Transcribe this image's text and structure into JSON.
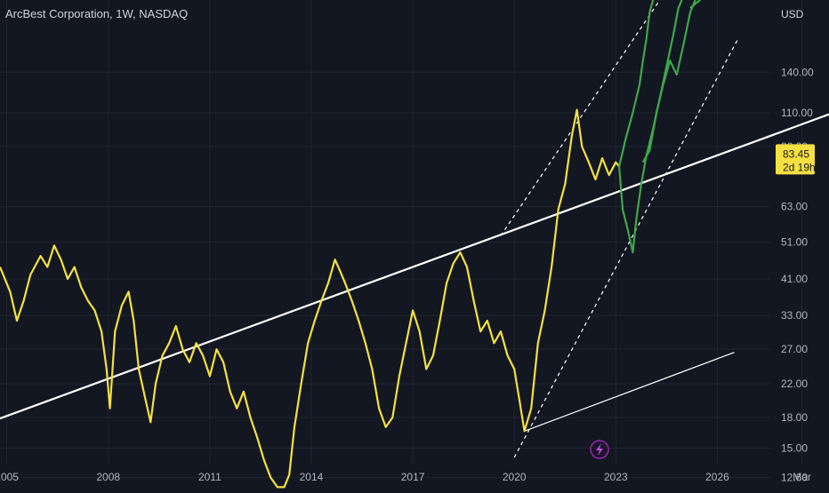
{
  "header": {
    "title": "ArcBest Corporation, 1W, NASDAQ"
  },
  "chart_data": {
    "type": "line",
    "y_scale": "log",
    "y_axis_unit": "USD",
    "y_ticks": [
      12.6,
      15.0,
      18.0,
      22.0,
      27.0,
      33.0,
      41.0,
      51.0,
      63.0,
      90.0,
      110.0,
      140.0
    ],
    "y_tick_labels": [
      "12.60",
      "15.00",
      "18.00",
      "22.00",
      "27.00",
      "33.00",
      "41.00",
      "51.00",
      "63.00",
      "90.00",
      "110.00",
      "140.00"
    ],
    "x_tick_labels": [
      "2005",
      "2008",
      "2011",
      "2014",
      "2017",
      "2020",
      "2023",
      "2026",
      "Mar"
    ],
    "x_tick_values": [
      2005,
      2008,
      2011,
      2014,
      2017,
      2020,
      2023,
      2026,
      2028.5
    ],
    "ylim": [
      11.8,
      215
    ],
    "xlim": [
      2004.8,
      2029.3
    ],
    "last_price": {
      "value": 83.45,
      "label": "83.45",
      "countdown": "2d 19h"
    },
    "series": [
      {
        "color": "#f5e042",
        "points": [
          [
            2004.8,
            44
          ],
          [
            2005.1,
            38
          ],
          [
            2005.3,
            32
          ],
          [
            2005.5,
            36
          ],
          [
            2005.7,
            42
          ],
          [
            2006.0,
            47
          ],
          [
            2006.2,
            44
          ],
          [
            2006.4,
            50
          ],
          [
            2006.6,
            46
          ],
          [
            2006.8,
            41
          ],
          [
            2007.0,
            44
          ],
          [
            2007.2,
            39
          ],
          [
            2007.4,
            36
          ],
          [
            2007.6,
            34
          ],
          [
            2007.8,
            30
          ],
          [
            2007.95,
            24
          ],
          [
            2008.05,
            19
          ],
          [
            2008.2,
            30
          ],
          [
            2008.4,
            35
          ],
          [
            2008.6,
            38
          ],
          [
            2008.75,
            32
          ],
          [
            2008.9,
            24
          ],
          [
            2009.1,
            20
          ],
          [
            2009.25,
            17.5
          ],
          [
            2009.4,
            22
          ],
          [
            2009.6,
            26
          ],
          [
            2009.8,
            28
          ],
          [
            2010.0,
            31
          ],
          [
            2010.2,
            27
          ],
          [
            2010.4,
            25
          ],
          [
            2010.6,
            28
          ],
          [
            2010.8,
            26
          ],
          [
            2011.0,
            23
          ],
          [
            2011.2,
            27
          ],
          [
            2011.4,
            25
          ],
          [
            2011.6,
            21
          ],
          [
            2011.8,
            19
          ],
          [
            2012.0,
            21
          ],
          [
            2012.2,
            18
          ],
          [
            2012.4,
            16
          ],
          [
            2012.6,
            14
          ],
          [
            2012.8,
            12.6
          ],
          [
            2013.0,
            11.9
          ],
          [
            2013.2,
            11.9
          ],
          [
            2013.35,
            12.8
          ],
          [
            2013.5,
            17
          ],
          [
            2013.7,
            22
          ],
          [
            2013.9,
            28
          ],
          [
            2014.1,
            32
          ],
          [
            2014.3,
            36
          ],
          [
            2014.5,
            40
          ],
          [
            2014.7,
            46
          ],
          [
            2014.85,
            43
          ],
          [
            2015.0,
            40
          ],
          [
            2015.2,
            36
          ],
          [
            2015.4,
            32
          ],
          [
            2015.6,
            28
          ],
          [
            2015.8,
            24
          ],
          [
            2016.0,
            19
          ],
          [
            2016.2,
            17
          ],
          [
            2016.4,
            18
          ],
          [
            2016.6,
            23
          ],
          [
            2016.8,
            28
          ],
          [
            2017.0,
            34
          ],
          [
            2017.2,
            30
          ],
          [
            2017.4,
            24
          ],
          [
            2017.6,
            26
          ],
          [
            2017.8,
            32
          ],
          [
            2018.0,
            40
          ],
          [
            2018.2,
            45
          ],
          [
            2018.4,
            48
          ],
          [
            2018.6,
            44
          ],
          [
            2018.8,
            36
          ],
          [
            2019.0,
            30
          ],
          [
            2019.2,
            32
          ],
          [
            2019.4,
            28
          ],
          [
            2019.6,
            30
          ],
          [
            2019.8,
            26
          ],
          [
            2020.0,
            24
          ],
          [
            2020.15,
            20
          ],
          [
            2020.3,
            16.6
          ],
          [
            2020.5,
            19
          ],
          [
            2020.7,
            28
          ],
          [
            2020.9,
            34
          ],
          [
            2021.1,
            44
          ],
          [
            2021.3,
            62
          ],
          [
            2021.5,
            72
          ],
          [
            2021.7,
            96
          ],
          [
            2021.85,
            112
          ],
          [
            2022.0,
            90
          ],
          [
            2022.2,
            82
          ],
          [
            2022.4,
            74
          ],
          [
            2022.6,
            84
          ],
          [
            2022.8,
            76
          ],
          [
            2023.0,
            82
          ],
          [
            2023.1,
            80
          ]
        ]
      },
      {
        "color": "#3ea84a",
        "points": [
          [
            2023.1,
            80
          ],
          [
            2023.3,
            95
          ],
          [
            2023.5,
            110
          ],
          [
            2023.7,
            130
          ],
          [
            2023.8,
            150
          ],
          [
            2023.9,
            170
          ],
          [
            2024.0,
            200
          ],
          [
            2024.1,
            215
          ]
        ]
      },
      {
        "color": "#3ea84a",
        "points": [
          [
            2023.1,
            80
          ],
          [
            2023.2,
            62
          ],
          [
            2023.35,
            55
          ],
          [
            2023.5,
            48
          ],
          [
            2023.6,
            58
          ],
          [
            2023.75,
            72
          ],
          [
            2023.9,
            85
          ],
          [
            2024.1,
            100
          ],
          [
            2024.3,
            120
          ],
          [
            2024.5,
            145
          ],
          [
            2024.7,
            175
          ],
          [
            2024.85,
            205
          ],
          [
            2024.95,
            215
          ]
        ]
      },
      {
        "color": "#3ea84a",
        "points": [
          [
            2023.8,
            82
          ],
          [
            2024.0,
            88
          ],
          [
            2024.2,
            110
          ],
          [
            2024.4,
            130
          ],
          [
            2024.6,
            150
          ],
          [
            2024.8,
            138
          ],
          [
            2025.0,
            165
          ],
          [
            2025.2,
            200
          ],
          [
            2025.35,
            215
          ]
        ]
      },
      {
        "color": "#3ea84a",
        "points": [
          [
            2025.2,
            205
          ],
          [
            2025.4,
            212
          ],
          [
            2025.5,
            215
          ]
        ]
      }
    ],
    "trendlines": [
      {
        "style": "solid",
        "width": 2.2,
        "from": [
          2004.8,
          17.9
        ],
        "to": [
          2029.3,
          109
        ]
      },
      {
        "style": "solid",
        "width": 1.2,
        "from": [
          2020.3,
          16.6
        ],
        "to": [
          2026.5,
          26.5
        ]
      },
      {
        "style": "dashed",
        "width": 1.2,
        "from": [
          2019.6,
          53
        ],
        "to": [
          2024.3,
          215
        ]
      },
      {
        "style": "dashed",
        "width": 1.2,
        "from": [
          2020.0,
          14.2
        ],
        "to": [
          2026.6,
          170
        ]
      }
    ],
    "grid": true,
    "legend": "none"
  }
}
